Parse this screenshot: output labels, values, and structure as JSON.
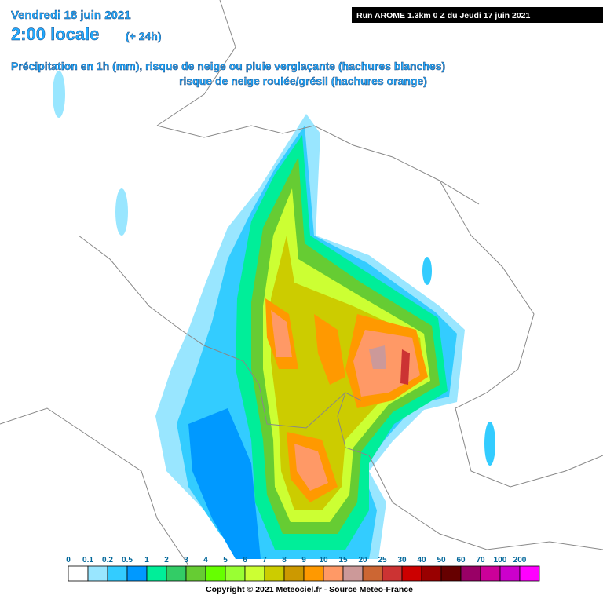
{
  "header": {
    "date": "Vendredi 18 juin 2021",
    "time": "2:00 locale",
    "lead": "(+ 24h)",
    "run": "Run AROME 1.3km 0 Z du Jeudi 17 juin 2021",
    "description": [
      "Précipitation en 1h (mm), risque de neige ou pluie verglaçante (hachures blanches)",
      "risque de neige roulée/grésil (hachures orange)"
    ]
  },
  "legend": {
    "labels": [
      0,
      0.1,
      0.2,
      0.5,
      1,
      2,
      3,
      4,
      5,
      6,
      7,
      8,
      9,
      10,
      15,
      20,
      25,
      30,
      40,
      50,
      60,
      70,
      100,
      200
    ],
    "colors": [
      "#ffffff",
      "#99e6ff",
      "#33ccff",
      "#0099ff",
      "#00ee99",
      "#33cc66",
      "#66cc33",
      "#66ff00",
      "#99ff33",
      "#ccff33",
      "#cccc00",
      "#cc9900",
      "#ff9900",
      "#ff9966",
      "#cc9999",
      "#cc6633",
      "#cc3333",
      "#cc0000",
      "#990000",
      "#660000",
      "#990066",
      "#cc0099",
      "#cc00cc",
      "#ff00ff"
    ]
  },
  "footer": {
    "copyright": "Copyright © 2021 Meteociel.fr - Source Meteo-France"
  }
}
